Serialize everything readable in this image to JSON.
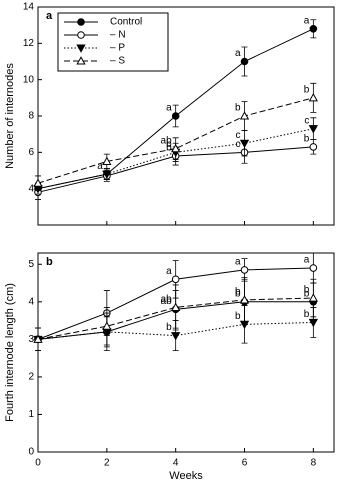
{
  "chart_data": [
    {
      "type": "line",
      "panel_label": "a",
      "ylabel": "Number of internodes",
      "x": [
        0,
        2,
        4,
        6,
        8
      ],
      "xlim": [
        0,
        8.6
      ],
      "ylim": [
        2,
        14
      ],
      "yticks": [
        4,
        6,
        8,
        10,
        12,
        14
      ],
      "legend": "top-left",
      "series": [
        {
          "name": "Control",
          "color": "#000000",
          "marker": "circle-filled",
          "dash": "solid",
          "values": [
            4.0,
            4.8,
            8.0,
            11.0,
            12.8
          ],
          "errors": [
            0.3,
            0.3,
            0.6,
            0.8,
            0.5
          ],
          "letters": [
            null,
            "a",
            "a",
            "a",
            "a"
          ]
        },
        {
          "name": "– N",
          "color": "#000000",
          "marker": "circle-open",
          "dash": "solid",
          "values": [
            3.8,
            4.7,
            5.8,
            6.0,
            6.3
          ],
          "errors": [
            0.4,
            0.3,
            0.5,
            0.6,
            0.4
          ],
          "letters": [
            null,
            null,
            "b",
            "c",
            "b"
          ]
        },
        {
          "name": "– P",
          "color": "#000000",
          "marker": "triangle-down-filled",
          "dash": "dotted",
          "values": [
            4.0,
            4.8,
            6.0,
            6.5,
            7.3
          ],
          "errors": [
            0.3,
            0.3,
            0.5,
            0.7,
            0.6
          ],
          "letters": [
            null,
            null,
            "b",
            "c",
            "c"
          ]
        },
        {
          "name": "– S",
          "color": "#000000",
          "marker": "triangle-up-open",
          "dash": "dashed",
          "values": [
            4.3,
            5.5,
            6.2,
            8.0,
            9.0
          ],
          "errors": [
            0.4,
            0.4,
            0.6,
            0.8,
            0.8
          ],
          "letters": [
            null,
            null,
            "ab",
            "b",
            "b"
          ]
        }
      ]
    },
    {
      "type": "line",
      "panel_label": "b",
      "ylabel": "Fourth internode length (cm)",
      "xlabel": "Weeks",
      "x": [
        0,
        2,
        4,
        6,
        8
      ],
      "xlim": [
        0,
        8.6
      ],
      "xticks": [
        0,
        2,
        4,
        6,
        8
      ],
      "ylim": [
        0,
        5.3
      ],
      "yticks": [
        0,
        1,
        2,
        3,
        4,
        5
      ],
      "series": [
        {
          "name": "Control",
          "color": "#000000",
          "marker": "circle-filled",
          "dash": "solid",
          "values": [
            3.0,
            3.2,
            3.8,
            4.0,
            4.0
          ],
          "errors": [
            0.3,
            0.4,
            0.5,
            0.6,
            0.5
          ],
          "letters": [
            null,
            null,
            "ab",
            "b",
            "b"
          ]
        },
        {
          "name": "– N",
          "color": "#000000",
          "marker": "circle-open",
          "dash": "solid",
          "values": [
            3.0,
            3.7,
            4.6,
            4.85,
            4.9
          ],
          "errors": [
            0.3,
            0.6,
            0.5,
            0.3,
            0.4
          ],
          "letters": [
            null,
            null,
            "a",
            "a",
            "a"
          ]
        },
        {
          "name": "– P",
          "color": "#000000",
          "marker": "triangle-down-filled",
          "dash": "dotted",
          "values": [
            3.0,
            3.2,
            3.1,
            3.4,
            3.45
          ],
          "errors": [
            0.3,
            0.5,
            0.4,
            0.5,
            0.4
          ],
          "letters": [
            null,
            null,
            "b",
            "b",
            "b"
          ]
        },
        {
          "name": "– S",
          "color": "#000000",
          "marker": "triangle-up-open",
          "dash": "dashed",
          "values": [
            3.0,
            3.35,
            3.85,
            4.05,
            4.1
          ],
          "errors": [
            0.3,
            0.5,
            0.6,
            0.6,
            0.5
          ],
          "letters": [
            null,
            null,
            "ab",
            "b",
            "b"
          ]
        }
      ]
    }
  ]
}
